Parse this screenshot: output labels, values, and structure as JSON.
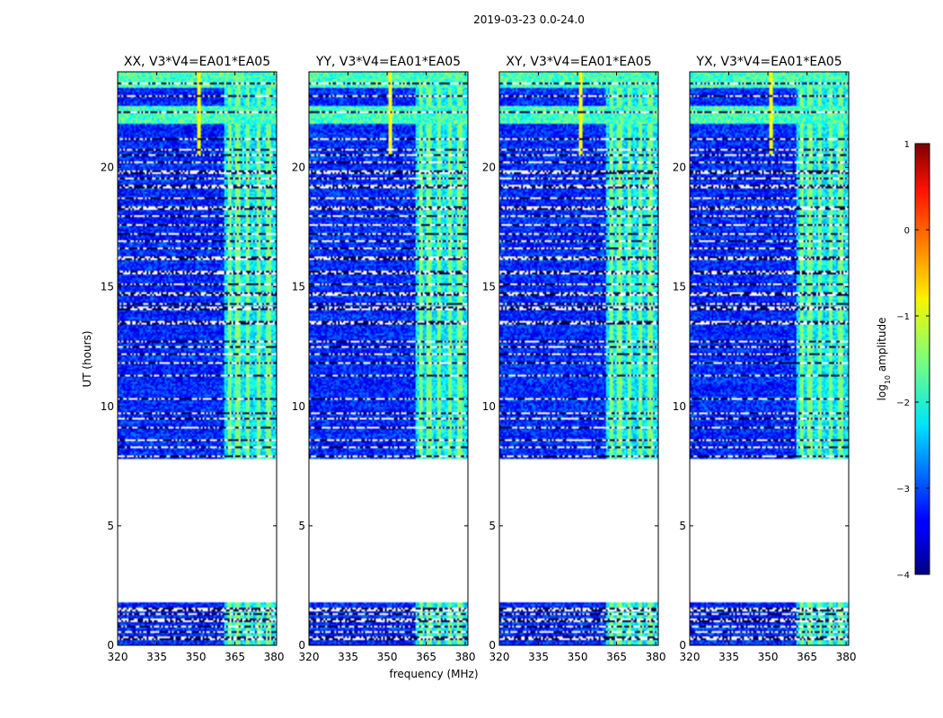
{
  "chart_data": {
    "type": "heatmap",
    "suptitle": "2019-03-23 0.0-24.0",
    "ylabel": "UT (hours)",
    "xlabel": "frequency (MHz)",
    "xlim": [
      320,
      381
    ],
    "ylim": [
      0,
      24
    ],
    "xticks": [
      320,
      335,
      350,
      365,
      380
    ],
    "yticks": [
      0,
      5,
      10,
      15,
      20
    ],
    "colorbar": {
      "label": "log10 amplitude",
      "label_prefix": "log",
      "label_sub": "10",
      "label_suffix": " amplitude",
      "range": [
        -4,
        1
      ],
      "ticks": [
        1,
        0,
        -1,
        -2,
        -3,
        -4
      ],
      "colormap": "jet"
    },
    "background_level": -3.2,
    "rfi_band_mhz": [
      361,
      381
    ],
    "rfi_band_level": -2.2,
    "bright_channels_mhz": [
      363,
      366,
      370,
      374,
      378
    ],
    "bright_channel_level": -1.5,
    "spike_channel_mhz": 351,
    "spike_level": -0.9,
    "data_gaps_hours": [
      [
        1.8,
        7.8
      ]
    ],
    "flag_rows_hours": [
      0.3,
      0.55,
      0.8,
      1.05,
      1.3,
      1.5,
      7.9,
      8.3,
      8.6,
      9.1,
      9.5,
      9.7,
      10.3,
      11.3,
      11.8,
      12.2,
      12.5,
      12.7,
      13.5,
      14.1,
      14.3,
      14.7,
      15.1,
      15.6,
      16.2,
      16.6,
      16.9,
      17.2,
      17.6,
      17.95,
      18.3,
      18.7,
      19.2,
      19.55,
      19.8,
      20.2,
      20.5,
      20.75,
      21.2,
      22.3,
      23.0,
      23.5
    ],
    "bright_blocks_hours": [
      [
        21.8,
        22.6
      ],
      [
        23.3,
        24.0
      ]
    ],
    "panels": [
      {
        "title": "XX, V3*V4=EA01*EA05",
        "polarization": "XX"
      },
      {
        "title": "YY, V3*V4=EA01*EA05",
        "polarization": "YY"
      },
      {
        "title": "XY, V3*V4=EA01*EA05",
        "polarization": "XY"
      },
      {
        "title": "YX, V3*V4=EA01*EA05",
        "polarization": "YX"
      }
    ]
  }
}
